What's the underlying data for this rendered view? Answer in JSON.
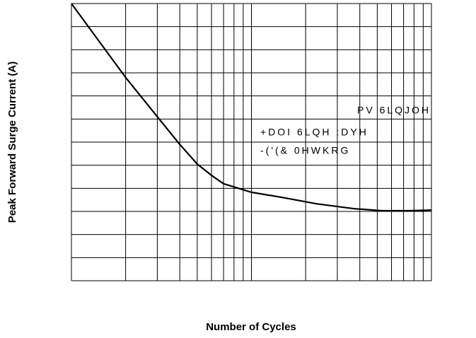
{
  "chart_data": {
    "type": "line",
    "xlabel": "Number of Cycles",
    "ylabel": "Peak Forward Surge Current (A)",
    "annotations": [
      "PV 6LQJOH",
      "+DOI 6LQH :DYH",
      "-('(& 0HWKRG"
    ],
    "x": [
      1,
      2,
      3,
      4,
      5,
      6,
      7,
      10,
      15,
      23,
      37,
      53,
      76,
      100
    ],
    "values": [
      12,
      8.8,
      7.1,
      5.9,
      5.05,
      4.56,
      4.2,
      3.83,
      3.6,
      3.33,
      3.12,
      3.03,
      3.03,
      3.06
    ],
    "color": "#000000",
    "xscale": "log",
    "xlim": [
      1,
      100
    ],
    "xticks": [
      1,
      2,
      3,
      4,
      5,
      6,
      7,
      8,
      9,
      10,
      20,
      30,
      40,
      50,
      60,
      70,
      80,
      90,
      100
    ],
    "ylim": [
      0,
      12
    ],
    "yticks": [
      0,
      1,
      2,
      3,
      4,
      5,
      6,
      7,
      8,
      9,
      10,
      11,
      12
    ],
    "grid": true
  }
}
